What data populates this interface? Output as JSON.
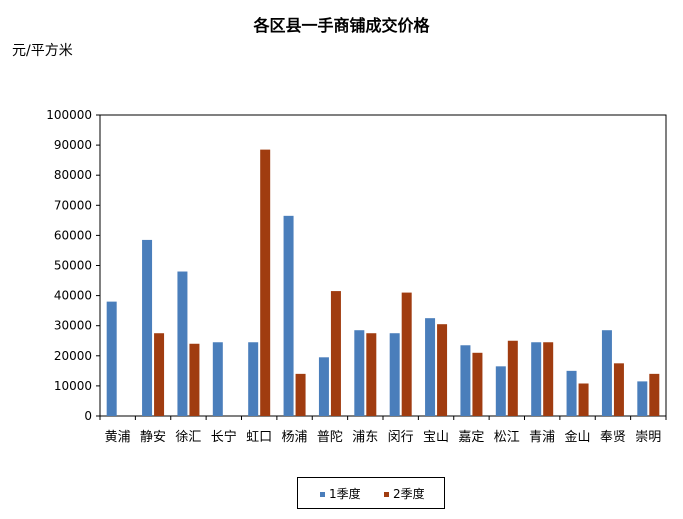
{
  "chart_data": {
    "type": "bar",
    "title": "各区县一手商铺成交价格",
    "ylabel": "元/平方米",
    "xlabel": "",
    "ylim": [
      0,
      100000
    ],
    "yticks": [
      0,
      10000,
      20000,
      30000,
      40000,
      50000,
      60000,
      70000,
      80000,
      90000,
      100000
    ],
    "categories": [
      "黄浦",
      "静安",
      "徐汇",
      "长宁",
      "虹口",
      "杨浦",
      "普陀",
      "浦东",
      "闵行",
      "宝山",
      "嘉定",
      "松江",
      "青浦",
      "金山",
      "奉贤",
      "崇明"
    ],
    "series": [
      {
        "name": "1季度",
        "color": "#4a7ebb",
        "values": [
          38000,
          58500,
          48000,
          24500,
          24500,
          66500,
          19500,
          28500,
          27500,
          32500,
          23500,
          16500,
          24500,
          15000,
          28500,
          11500
        ]
      },
      {
        "name": "2季度",
        "color": "#a03c10",
        "values": [
          null,
          27500,
          24000,
          null,
          88500,
          14000,
          41500,
          27500,
          41000,
          30500,
          21000,
          25000,
          24500,
          10800,
          17500,
          14000
        ]
      }
    ],
    "grid": false,
    "legend_position": "bottom"
  }
}
